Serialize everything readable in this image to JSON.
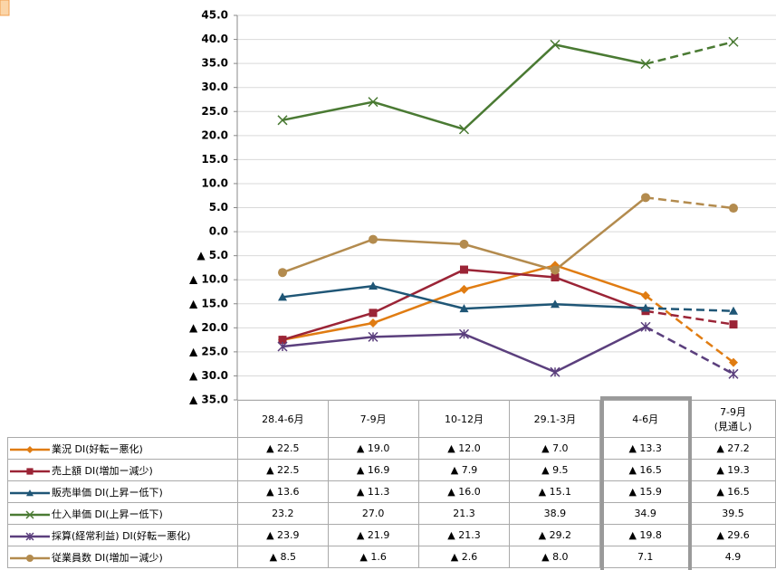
{
  "chart_data": {
    "type": "line",
    "categories": [
      "28.4-6月",
      "7-9月",
      "10-12月",
      "29.1-3月",
      "4-6月",
      "7-9月\n(見通し)"
    ],
    "ylim": [
      -35,
      45
    ],
    "yticks": [
      {
        "value": 45,
        "label": "45.0"
      },
      {
        "value": 40,
        "label": "40.0"
      },
      {
        "value": 35,
        "label": "35.0"
      },
      {
        "value": 30,
        "label": "30.0"
      },
      {
        "value": 25,
        "label": "25.0"
      },
      {
        "value": 20,
        "label": "20.0"
      },
      {
        "value": 15,
        "label": "15.0"
      },
      {
        "value": 10,
        "label": "10.0"
      },
      {
        "value": 5,
        "label": "5.0"
      },
      {
        "value": 0,
        "label": "0.0"
      },
      {
        "value": -5,
        "label": "▲ 5.0"
      },
      {
        "value": -10,
        "label": "▲ 10.0"
      },
      {
        "value": -15,
        "label": "▲ 15.0"
      },
      {
        "value": -20,
        "label": "▲ 20.0"
      },
      {
        "value": -25,
        "label": "▲ 25.0"
      },
      {
        "value": -30,
        "label": "▲ 30.0"
      },
      {
        "value": -35,
        "label": "▲ 35.0"
      }
    ],
    "grid": true,
    "dash_last_segment": true,
    "series": [
      {
        "name": "業況 DI(好転ー悪化)",
        "color": "#e07c12",
        "marker": "diamond",
        "values": [
          -22.5,
          -19.0,
          -12.0,
          -7.0,
          -13.3,
          -27.2
        ],
        "value_labels": [
          "▲ 22.5",
          "▲ 19.0",
          "▲ 12.0",
          "▲ 7.0",
          "▲ 13.3",
          "▲ 27.2"
        ]
      },
      {
        "name": "売上額 DI(増加ー減少)",
        "color": "#9b2436",
        "marker": "square",
        "values": [
          -22.5,
          -16.9,
          -7.9,
          -9.5,
          -16.5,
          -19.3
        ],
        "value_labels": [
          "▲ 22.5",
          "▲ 16.9",
          "▲ 7.9",
          "▲ 9.5",
          "▲ 16.5",
          "▲ 19.3"
        ]
      },
      {
        "name": "販売単価 DI(上昇ー低下)",
        "color": "#1f5676",
        "marker": "triangle",
        "values": [
          -13.6,
          -11.3,
          -16.0,
          -15.1,
          -15.9,
          -16.5
        ],
        "value_labels": [
          "▲ 13.6",
          "▲ 11.3",
          "▲ 16.0",
          "▲ 15.1",
          "▲ 15.9",
          "▲ 16.5"
        ]
      },
      {
        "name": "仕入単価 DI(上昇ー低下)",
        "color": "#4a7a33",
        "marker": "x",
        "values": [
          23.2,
          27.0,
          21.3,
          38.9,
          34.9,
          39.5
        ],
        "value_labels": [
          "23.2",
          "27.0",
          "21.3",
          "38.9",
          "34.9",
          "39.5"
        ]
      },
      {
        "name": "採算(経常利益) DI(好転ー悪化)",
        "color": "#5b3f7d",
        "marker": "star",
        "values": [
          -23.9,
          -21.9,
          -21.3,
          -29.2,
          -19.8,
          -29.6
        ],
        "value_labels": [
          "▲ 23.9",
          "▲ 21.9",
          "▲ 21.3",
          "▲ 29.2",
          "▲ 19.8",
          "▲ 29.6"
        ]
      },
      {
        "name": "従業員数 DI(増加ー減少)",
        "color": "#b38b4e",
        "marker": "circle",
        "values": [
          -8.5,
          -1.6,
          -2.6,
          -8.0,
          7.1,
          4.9
        ],
        "value_labels": [
          "▲ 8.5",
          "▲ 1.6",
          "▲ 2.6",
          "▲ 8.0",
          "7.1",
          "4.9"
        ]
      }
    ]
  }
}
